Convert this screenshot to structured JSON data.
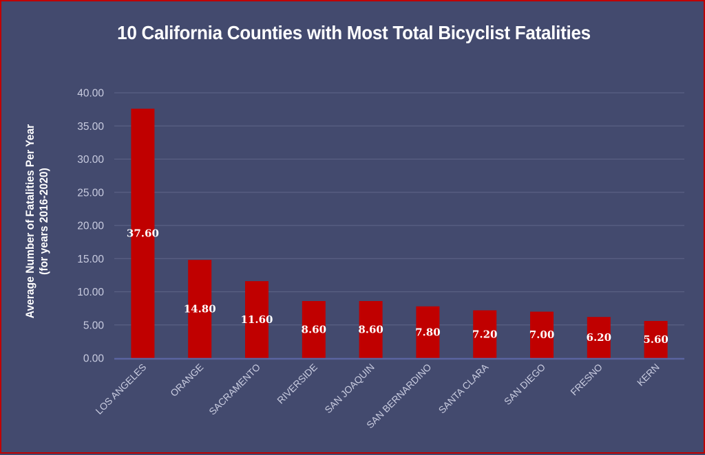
{
  "chart_data": {
    "type": "bar",
    "title": "10 California Counties with Most Total Bicyclist Fatalities",
    "xlabel": "",
    "ylabel": [
      "Average Number of Fatalities Per Year",
      "(for years 2016-2020)"
    ],
    "categories": [
      "LOS ANGELES",
      "ORANGE",
      "SACRAMENTO",
      "RIVERSIDE",
      "SAN JOAQUIN",
      "SAN BERNARDINO",
      "SANTA CLARA",
      "SAN DIEGO",
      "FRESNO",
      "KERN"
    ],
    "values": [
      37.6,
      14.8,
      11.6,
      8.6,
      8.6,
      7.8,
      7.2,
      7.0,
      6.2,
      5.6
    ],
    "data_labels": [
      "37.60",
      "14.80",
      "11.60",
      "8.60",
      "8.60",
      "7.80",
      "7.20",
      "7.00",
      "6.20",
      "5.60"
    ],
    "ylim": [
      0,
      40
    ],
    "yticks": [
      "0.00",
      "5.00",
      "10.00",
      "15.00",
      "20.00",
      "25.00",
      "30.00",
      "35.00",
      "40.00"
    ],
    "grid": true,
    "legend": "none",
    "colors": {
      "bar": "#c00000",
      "background": "#434a6e",
      "border": "#c00000",
      "grid": "#5a6184",
      "axis": "#5b64a0"
    }
  }
}
